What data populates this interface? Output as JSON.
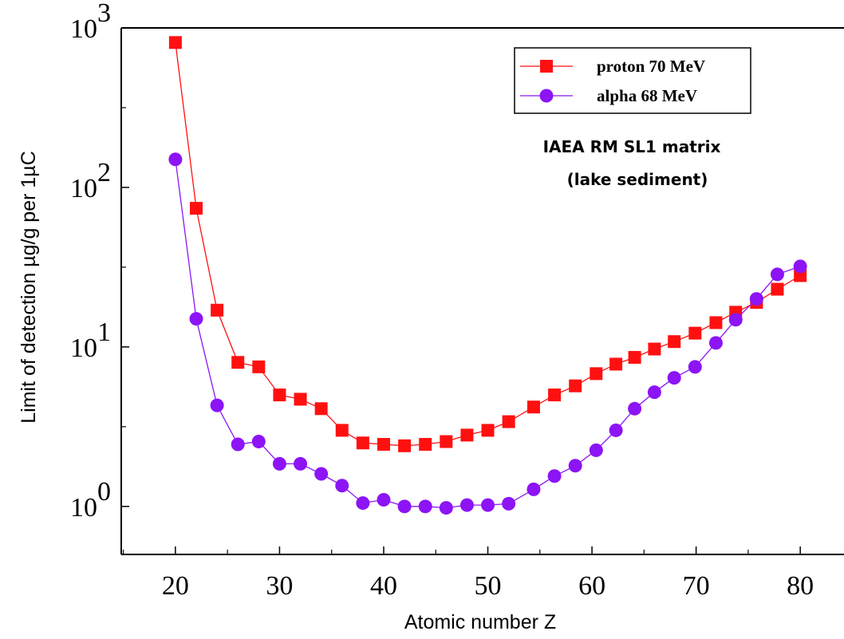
{
  "chart_data": {
    "type": "line",
    "xlabel": "Atomic number Z",
    "ylabel": "Limit of detection µg/g per 1µC",
    "xlim": [
      14.8,
      84.2
    ],
    "ylim": [
      0.5,
      1000
    ],
    "yscale": "log",
    "xticks": [
      20,
      30,
      40,
      50,
      60,
      70,
      80
    ],
    "xtick_labels": [
      "20",
      "30",
      "40",
      "50",
      "60",
      "70",
      "80"
    ],
    "yticks": [
      {
        "value": 1,
        "base": "10",
        "exp": "0"
      },
      {
        "value": 10,
        "base": "10",
        "exp": "1"
      },
      {
        "value": 100,
        "base": "10",
        "exp": "2"
      },
      {
        "value": 1000,
        "base": "10",
        "exp": "3"
      }
    ],
    "grid": false,
    "legend_position": "top-right",
    "annotations": [
      "IAEA RM SL1 matrix",
      "(lake sediment)"
    ],
    "series": [
      {
        "name": "proton 70 MeV",
        "color": "#ff1010",
        "marker": "square",
        "x": [
          20,
          22,
          24,
          26,
          28,
          30,
          32,
          34,
          36,
          38,
          40,
          42,
          44,
          46,
          48,
          50,
          52,
          54.4,
          56.4,
          58.4,
          60.4,
          62.3,
          64.1,
          66,
          67.9,
          69.9,
          71.9,
          73.8,
          75.8,
          77.8,
          80
        ],
        "y": [
          810,
          74,
          17,
          8.0,
          7.5,
          5.0,
          4.7,
          4.1,
          3.0,
          2.5,
          2.45,
          2.4,
          2.45,
          2.55,
          2.8,
          3.0,
          3.4,
          4.2,
          5.0,
          5.7,
          6.8,
          7.8,
          8.6,
          9.7,
          10.8,
          12.2,
          14.2,
          16.5,
          19.0,
          23.0,
          28.0
        ]
      },
      {
        "name": "alpha 68 MeV",
        "color": "#8c14f5",
        "marker": "circle",
        "x": [
          20,
          22,
          24,
          26,
          28,
          30,
          32,
          34,
          36,
          38,
          40,
          42,
          44,
          46,
          48,
          50,
          52,
          54.4,
          56.4,
          58.4,
          60.4,
          62.3,
          64.1,
          66,
          67.9,
          69.9,
          71.9,
          73.8,
          75.8,
          77.8,
          80
        ],
        "y": [
          150,
          15,
          4.3,
          2.45,
          2.55,
          1.85,
          1.85,
          1.6,
          1.35,
          1.05,
          1.1,
          1.0,
          1.0,
          0.98,
          1.02,
          1.02,
          1.04,
          1.28,
          1.55,
          1.8,
          2.25,
          3.0,
          4.1,
          5.2,
          6.4,
          7.5,
          10.6,
          14.8,
          20.0,
          28.5,
          32.0
        ]
      }
    ]
  }
}
